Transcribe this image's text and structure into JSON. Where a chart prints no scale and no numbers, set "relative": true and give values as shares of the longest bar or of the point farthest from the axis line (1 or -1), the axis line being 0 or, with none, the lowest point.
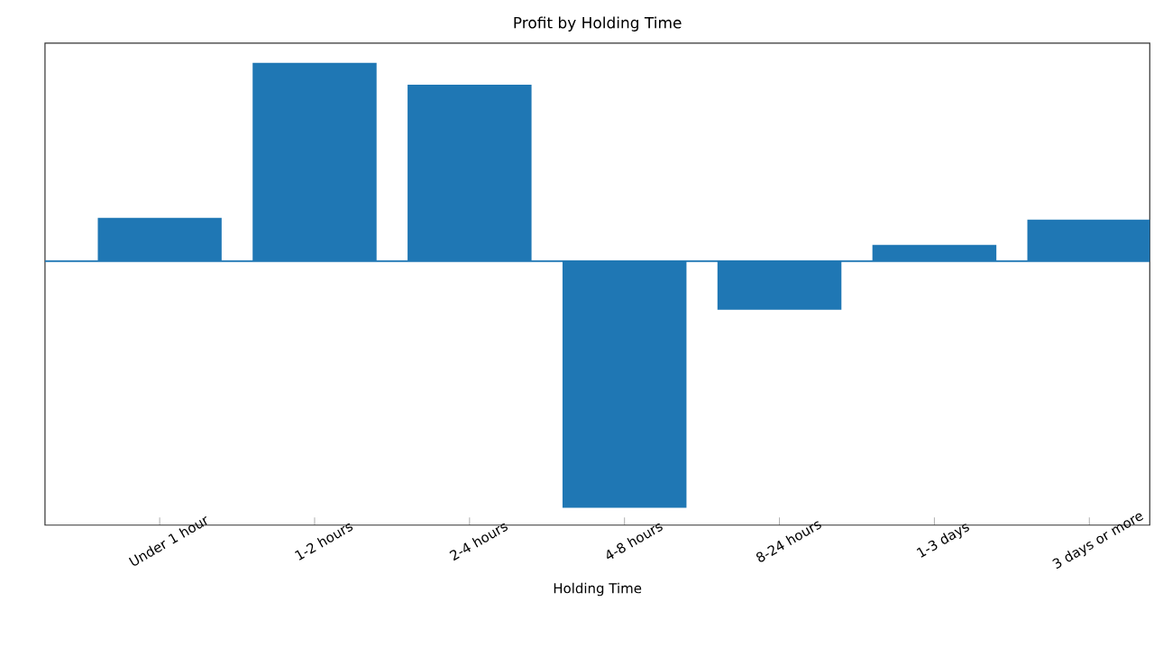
{
  "chart_data": {
    "type": "bar",
    "title": "Profit by Holding Time",
    "xlabel": "Holding Time",
    "categories": [
      "Under 1 hour",
      "1-2 hours",
      "2-4 hours",
      "4-8 hours",
      "8-24 hours",
      "1-3 days",
      "3 days or more"
    ],
    "values": [
      0.175,
      0.803,
      0.715,
      -1,
      -0.197,
      0.066,
      0.168
    ],
    "color": "#1f77b4",
    "relative": true,
    "ref_lines": [
      {
        "axis": "y",
        "value": 0,
        "color": "#1f77b4"
      }
    ]
  }
}
